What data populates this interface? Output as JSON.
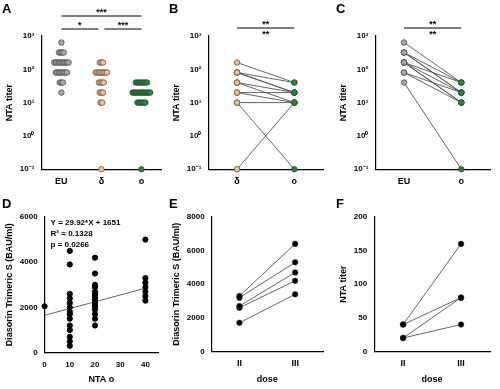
{
  "chart_data": [
    {
      "type": "strip",
      "title": "A",
      "categories": [
        "EU",
        "δ",
        "o"
      ],
      "values": [
        [
          640,
          320,
          320,
          320,
          320,
          160,
          160,
          160,
          160,
          160,
          160,
          160,
          160,
          160,
          160,
          80,
          80,
          80,
          80,
          80,
          80,
          80,
          80,
          40,
          40,
          40,
          20
        ],
        [
          160,
          160,
          160,
          80,
          80,
          80,
          80,
          80,
          80,
          80,
          80,
          40,
          40,
          40,
          40,
          20,
          20,
          20,
          10,
          10,
          0.1
        ],
        [
          40,
          40,
          40,
          40,
          40,
          40,
          40,
          40,
          20,
          20,
          20,
          20,
          20,
          20,
          20,
          20,
          20,
          20,
          20,
          20,
          10,
          10,
          10,
          10,
          10,
          10,
          0.1
        ]
      ],
      "colors": [
        "#a6a6a6",
        "#f6be8a",
        "#1e8b3c"
      ],
      "y_label": "NTA titer",
      "log": "y",
      "ylim": [
        0.1,
        1000
      ],
      "yticks": [
        {
          "value": 0.1,
          "label": "10⁻¹"
        },
        {
          "value": 1,
          "label": "10⁰"
        },
        {
          "value": 10,
          "label": "10¹"
        },
        {
          "value": 100,
          "label": "10²"
        },
        {
          "value": 1000,
          "label": "10³"
        }
      ],
      "annotations": [
        "***",
        "*",
        "***"
      ],
      "grid": false
    },
    {
      "type": "paired",
      "title": "B",
      "categories": [
        "δ",
        "o"
      ],
      "values": [
        [
          160,
          40
        ],
        [
          80,
          40
        ],
        [
          80,
          20
        ],
        [
          80,
          20
        ],
        [
          40,
          20
        ],
        [
          40,
          10
        ],
        [
          20,
          20
        ],
        [
          20,
          10
        ],
        [
          10,
          10
        ],
        [
          10,
          0.1
        ],
        [
          0.1,
          10
        ]
      ],
      "colors": [
        "#f6be8a",
        "#1e8b3c"
      ],
      "y_label": "NTA titer",
      "log": "y",
      "ylim": [
        0.1,
        1000
      ],
      "yticks": [
        {
          "value": 0.1,
          "label": "10⁻¹"
        },
        {
          "value": 1,
          "label": "10⁰"
        },
        {
          "value": 10,
          "label": "10¹"
        },
        {
          "value": 100,
          "label": "10²"
        },
        {
          "value": 1000,
          "label": "10³"
        }
      ],
      "annotations": [
        "**",
        "**"
      ],
      "grid": false
    },
    {
      "type": "paired",
      "title": "C",
      "categories": [
        "EU",
        "o"
      ],
      "values": [
        [
          640,
          40
        ],
        [
          320,
          40
        ],
        [
          320,
          20
        ],
        [
          320,
          20
        ],
        [
          160,
          20
        ],
        [
          160,
          10
        ],
        [
          160,
          10
        ],
        [
          80,
          10
        ],
        [
          80,
          20
        ],
        [
          160,
          40
        ],
        [
          40,
          0.1
        ]
      ],
      "colors": [
        "#a6a6a6",
        "#1e8b3c"
      ],
      "y_label": "NTA titer",
      "log": "y",
      "ylim": [
        0.1,
        1000
      ],
      "yticks": [
        {
          "value": 0.1,
          "label": "10⁻¹"
        },
        {
          "value": 1,
          "label": "10⁰"
        },
        {
          "value": 10,
          "label": "10¹"
        },
        {
          "value": 100,
          "label": "10²"
        },
        {
          "value": 1000,
          "label": "10³"
        }
      ],
      "annotations": [
        "**",
        "**"
      ],
      "grid": false
    },
    {
      "type": "scatter",
      "title": "D",
      "x": [
        0,
        10,
        10,
        10,
        10,
        10,
        10,
        10,
        10,
        10,
        10,
        10,
        10,
        10,
        10,
        20,
        20,
        20,
        20,
        20,
        20,
        20,
        20,
        20,
        20,
        20,
        20,
        20,
        20,
        20,
        20,
        40,
        40,
        40,
        40,
        40,
        40,
        40
      ],
      "values": [
        2050,
        4500,
        3900,
        2600,
        2400,
        2200,
        2000,
        1800,
        1700,
        1500,
        1200,
        1000,
        700,
        500,
        300,
        4200,
        3500,
        3000,
        2900,
        2700,
        2600,
        2500,
        2400,
        2300,
        2200,
        2100,
        2000,
        1900,
        1700,
        1500,
        1200,
        5000,
        3300,
        3100,
        2900,
        2700,
        2500,
        2300
      ],
      "color": "#000000",
      "x_label": "NTA o",
      "y_label": "Diasorin Trimeric S (BAU/ml)",
      "xlim": [
        0,
        45
      ],
      "xticks": [
        0,
        10,
        20,
        30,
        40
      ],
      "ylim": [
        0,
        6000
      ],
      "yticks": [
        0,
        2000,
        4000,
        6000
      ],
      "fit": {
        "slope": 29.92,
        "intercept": 1651
      },
      "annotations": [
        "Y = 29.92*X + 1651",
        "R² = 0.1328",
        "p = 0.0266"
      ],
      "grid": false
    },
    {
      "type": "paired",
      "title": "E",
      "categories": [
        "II",
        "III"
      ],
      "values": [
        [
          3300,
          6400
        ],
        [
          3200,
          5300
        ],
        [
          2700,
          4700
        ],
        [
          2600,
          4200
        ],
        [
          1700,
          3400
        ]
      ],
      "colors": [
        "#000000",
        "#000000"
      ],
      "x_label": "dose",
      "y_label": "Diasorin Trimeric S (BAU/ml)",
      "ylim": [
        0,
        8000
      ],
      "yticks": [
        0,
        2000,
        4000,
        6000,
        8000
      ],
      "grid": false
    },
    {
      "type": "paired",
      "title": "F",
      "categories": [
        "II",
        "III"
      ],
      "values": [
        [
          40,
          160
        ],
        [
          40,
          80
        ],
        [
          20,
          80
        ],
        [
          20,
          40
        ]
      ],
      "colors": [
        "#000000",
        "#000000"
      ],
      "x_label": "dose",
      "y_label": "NTA titer",
      "ylim": [
        0,
        200
      ],
      "yticks": [
        0,
        50,
        100,
        150,
        200
      ],
      "grid": false
    }
  ]
}
